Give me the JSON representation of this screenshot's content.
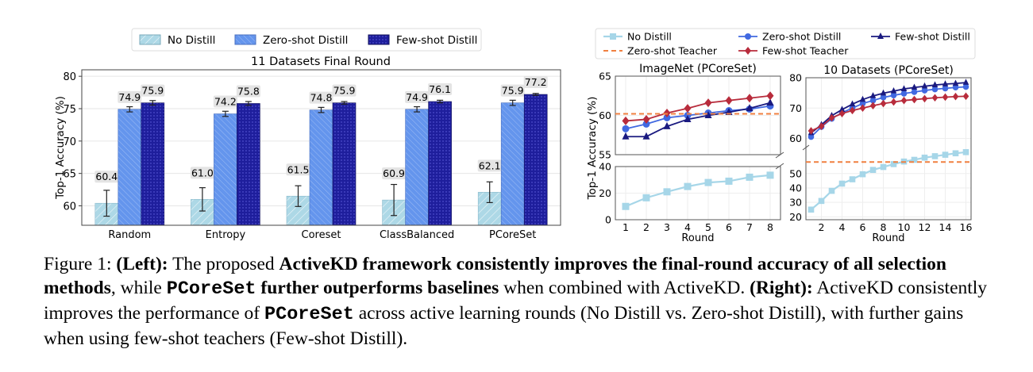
{
  "chart_data": [
    {
      "type": "bar",
      "title": "11 Datasets Final Round",
      "xlabel": "",
      "ylabel": "Top-1 Accuracy (%)",
      "ylim": [
        57,
        81
      ],
      "yticks": [
        60,
        65,
        70,
        75,
        80
      ],
      "categories": [
        "Random",
        "Entropy",
        "Coreset",
        "ClassBalanced",
        "PCoreSet"
      ],
      "legend_position": "top",
      "grid": true,
      "series": [
        {
          "name": "No Distill",
          "values": [
            60.4,
            61.0,
            61.5,
            60.9,
            62.1
          ],
          "errors": [
            2.0,
            1.8,
            1.6,
            2.4,
            1.6
          ],
          "color": "#add8e6"
        },
        {
          "name": "Zero-shot Distill",
          "values": [
            74.9,
            74.2,
            74.8,
            74.9,
            75.9
          ],
          "errors": [
            0.4,
            0.4,
            0.4,
            0.4,
            0.4
          ],
          "color": "#6495ed"
        },
        {
          "name": "Few-shot Distill",
          "values": [
            75.9,
            75.8,
            75.9,
            76.1,
            77.2
          ],
          "errors": [
            0.35,
            0.3,
            0.2,
            0.2,
            0.15
          ],
          "color": "#1e1e9c"
        }
      ],
      "value_labels": [
        [
          "60.4",
          "61.0",
          "61.5",
          "60.9",
          "62.1"
        ],
        [
          "74.9",
          "74.2",
          "74.8",
          "74.9",
          "75.9"
        ],
        [
          "75.9",
          "75.8",
          "75.9",
          "76.1",
          "77.2"
        ]
      ]
    },
    {
      "type": "line",
      "title": "ImageNet (PCoreSet)",
      "xlabel": "Round",
      "ylabel": "Top-1 Accuracy (%)",
      "broken_axis": true,
      "upper_ylim": [
        55,
        65
      ],
      "upper_yticks": [
        55,
        60,
        65
      ],
      "lower_ylim": [
        0,
        40
      ],
      "lower_yticks": [
        0,
        20,
        40
      ],
      "x": [
        1,
        2,
        3,
        4,
        5,
        6,
        7,
        8
      ],
      "series": [
        {
          "name": "No Distill",
          "values": [
            10,
            16.5,
            21,
            25,
            28,
            29,
            32,
            33.5
          ]
        },
        {
          "name": "Zero-shot Distill",
          "values": [
            58.3,
            58.9,
            59.7,
            60.0,
            60.3,
            60.6,
            60.8,
            61.2
          ]
        },
        {
          "name": "Few-shot Distill",
          "values": [
            57.3,
            57.3,
            58.6,
            59.5,
            60.0,
            60.4,
            60.9,
            61.6
          ]
        },
        {
          "name": "Few-shot Teacher",
          "values": [
            59.3,
            59.5,
            60.3,
            60.9,
            61.6,
            61.9,
            62.2,
            62.5
          ]
        },
        {
          "name": "Zero-shot Teacher",
          "constant": 60.2
        }
      ]
    },
    {
      "type": "line",
      "title": "10 Datasets (PCoreSet)",
      "xlabel": "Round",
      "ylabel": "",
      "broken_axis": true,
      "upper_ylim": [
        57,
        80
      ],
      "upper_yticks": [
        60,
        70,
        80
      ],
      "lower_ylim": [
        18,
        68
      ],
      "lower_yticks": [
        20,
        30,
        40,
        50
      ],
      "x": [
        1,
        2,
        3,
        4,
        5,
        6,
        7,
        8,
        9,
        10,
        11,
        12,
        13,
        14,
        15,
        16
      ],
      "series": [
        {
          "name": "No Distill",
          "values": [
            25,
            31,
            38,
            43,
            46,
            49.5,
            52.5,
            54.5,
            56.5,
            58.3,
            59.5,
            61,
            62,
            63,
            64,
            64.8
          ]
        },
        {
          "name": "Zero-shot Distill",
          "values": [
            60.5,
            63.8,
            66.5,
            68.5,
            70,
            71.5,
            72.5,
            73.5,
            74.2,
            74.8,
            75.3,
            75.8,
            76.2,
            76.5,
            76.8,
            77
          ]
        },
        {
          "name": "Few-shot Distill",
          "values": [
            61.8,
            64.5,
            67.5,
            69.5,
            71.3,
            72.8,
            74,
            74.9,
            75.6,
            76.3,
            76.8,
            77.2,
            77.6,
            77.9,
            78.1,
            78.4
          ]
        },
        {
          "name": "Few-shot Teacher",
          "values": [
            62.5,
            64,
            66.8,
            68.2,
            69.2,
            70,
            70.8,
            71.5,
            72,
            72.5,
            72.8,
            73.1,
            73.4,
            73.6,
            73.8,
            73.9
          ]
        },
        {
          "name": "Zero-shot Teacher",
          "constant_lower": 58
        }
      ]
    }
  ],
  "caption": {
    "fig_label": "Figure 1: ",
    "left_label": "(Left):",
    "part1": " The proposed ",
    "bold1": "ActiveKD framework consistently improves the final-round accuracy of all selection methods",
    "part2": ", while ",
    "mono1": "PCoreSet",
    "bold2": " further outperforms baselines",
    "part3": " when combined with ActiveKD. ",
    "right_label": "(Right):",
    "part4": " ActiveKD consistently improves the performance of ",
    "mono2": "PCoreSet",
    "part5": " across active learning rounds (No Distill vs. Zero-shot Distill), with further gains when using few-shot teachers (Few-shot Distill)."
  }
}
